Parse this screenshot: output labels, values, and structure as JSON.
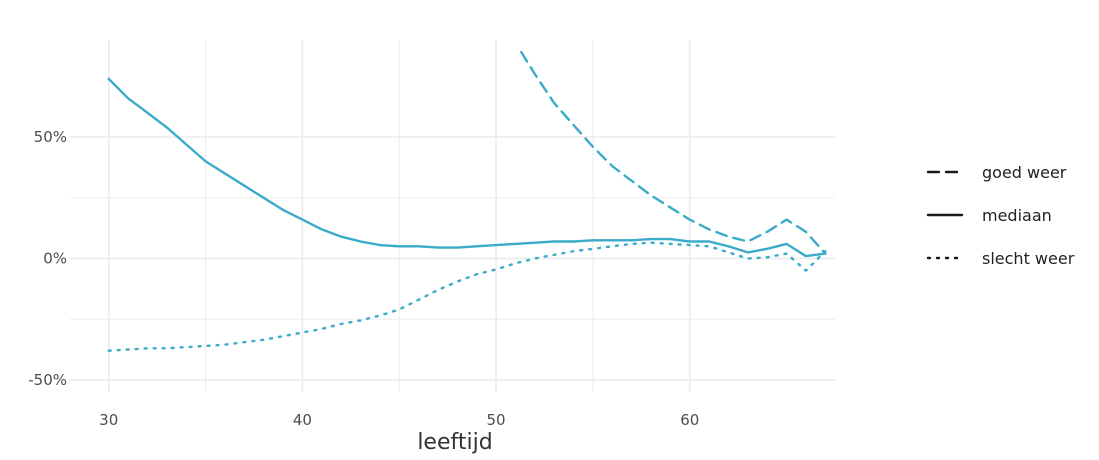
{
  "colors": {
    "series": "#3aabc8",
    "grid": "#ebebeb",
    "legend_key": "#1a1a1a"
  },
  "chart_data": {
    "type": "line",
    "xlabel": "leeftijd",
    "ylabel": "",
    "xlim": [
      28,
      67.5
    ],
    "ylim": [
      -0.55,
      0.9
    ],
    "x_ticks": [
      30,
      40,
      50,
      60
    ],
    "x_tick_labels": [
      "30",
      "40",
      "50",
      "60"
    ],
    "y_ticks": [
      -0.5,
      0,
      0.5
    ],
    "y_tick_labels": [
      "-50%",
      "0%",
      "50%"
    ],
    "grid": true,
    "legend_position": "right",
    "series": [
      {
        "name": "goed weer",
        "dash": "dashed",
        "x": [
          51.3,
          52,
          53,
          54,
          55,
          56,
          57,
          58,
          59,
          60,
          61,
          62,
          63,
          64,
          65,
          66,
          67
        ],
        "y": [
          0.85,
          0.76,
          0.64,
          0.55,
          0.46,
          0.38,
          0.32,
          0.26,
          0.21,
          0.16,
          0.12,
          0.09,
          0.07,
          0.11,
          0.16,
          0.11,
          0.02
        ]
      },
      {
        "name": "mediaan",
        "dash": "solid",
        "x": [
          30,
          31,
          32,
          33,
          34,
          35,
          36,
          37,
          38,
          39,
          40,
          41,
          42,
          43,
          44,
          45,
          46,
          47,
          48,
          49,
          50,
          51,
          52,
          53,
          54,
          55,
          56,
          57,
          58,
          59,
          60,
          61,
          62,
          63,
          64,
          65,
          66,
          67
        ],
        "y": [
          0.74,
          0.66,
          0.6,
          0.54,
          0.47,
          0.4,
          0.35,
          0.3,
          0.25,
          0.2,
          0.16,
          0.12,
          0.09,
          0.07,
          0.055,
          0.05,
          0.05,
          0.045,
          0.045,
          0.05,
          0.055,
          0.06,
          0.065,
          0.07,
          0.07,
          0.075,
          0.075,
          0.075,
          0.08,
          0.08,
          0.07,
          0.07,
          0.05,
          0.025,
          0.04,
          0.06,
          0.01,
          0.02
        ]
      },
      {
        "name": "slecht weer",
        "dash": "dotted",
        "x": [
          30,
          31,
          32,
          33,
          34,
          35,
          36,
          37,
          38,
          39,
          40,
          41,
          42,
          43,
          44,
          45,
          46,
          47,
          48,
          49,
          50,
          51,
          52,
          53,
          54,
          55,
          56,
          57,
          58,
          59,
          60,
          61,
          62,
          63,
          64,
          65,
          66,
          67
        ],
        "y": [
          -0.38,
          -0.375,
          -0.37,
          -0.37,
          -0.365,
          -0.36,
          -0.355,
          -0.345,
          -0.335,
          -0.32,
          -0.305,
          -0.29,
          -0.27,
          -0.255,
          -0.235,
          -0.21,
          -0.17,
          -0.13,
          -0.095,
          -0.065,
          -0.045,
          -0.02,
          0.0,
          0.015,
          0.03,
          0.04,
          0.05,
          0.06,
          0.065,
          0.06,
          0.055,
          0.05,
          0.025,
          0.0,
          0.005,
          0.02,
          -0.05,
          0.03
        ]
      }
    ]
  }
}
